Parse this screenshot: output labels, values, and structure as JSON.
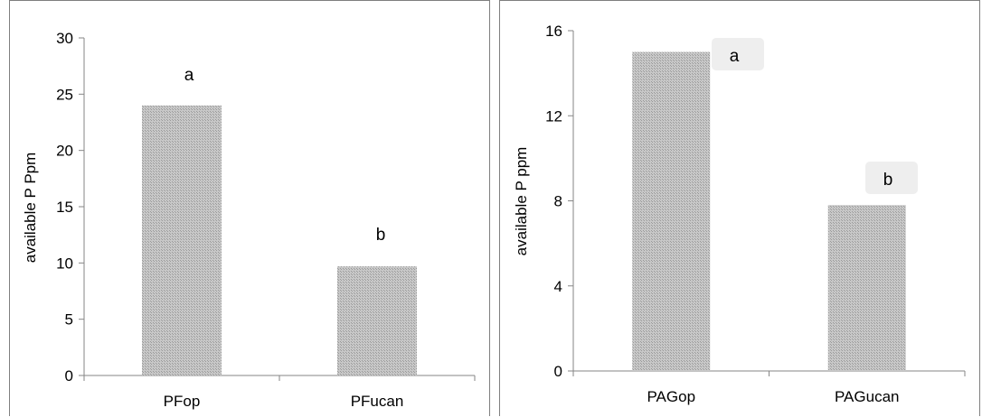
{
  "colors": {
    "bar_fill": "#c8c8c8",
    "bar_pattern": "#9a9a9a",
    "axis": "#868686",
    "label_box": "#eeeeee"
  },
  "chart_data": [
    {
      "type": "bar",
      "categories": [
        "PFop",
        "PFucan"
      ],
      "values": [
        24,
        9.7
      ],
      "ylabel": "available P Ppm",
      "xlabel": "",
      "ylim": [
        0,
        30
      ],
      "yticks": [
        "0",
        "5",
        "10",
        "15",
        "20",
        "25",
        "30"
      ],
      "annotations": [
        "a",
        "b"
      ],
      "grid": false
    },
    {
      "type": "bar",
      "categories": [
        "PAGop",
        "PAGucan"
      ],
      "values": [
        15,
        7.8
      ],
      "ylabel": "available P ppm",
      "xlabel": "",
      "ylim": [
        0,
        16
      ],
      "yticks": [
        "0",
        "4",
        "8",
        "12",
        "16"
      ],
      "annotations": [
        "a",
        "b"
      ],
      "grid": false
    }
  ]
}
